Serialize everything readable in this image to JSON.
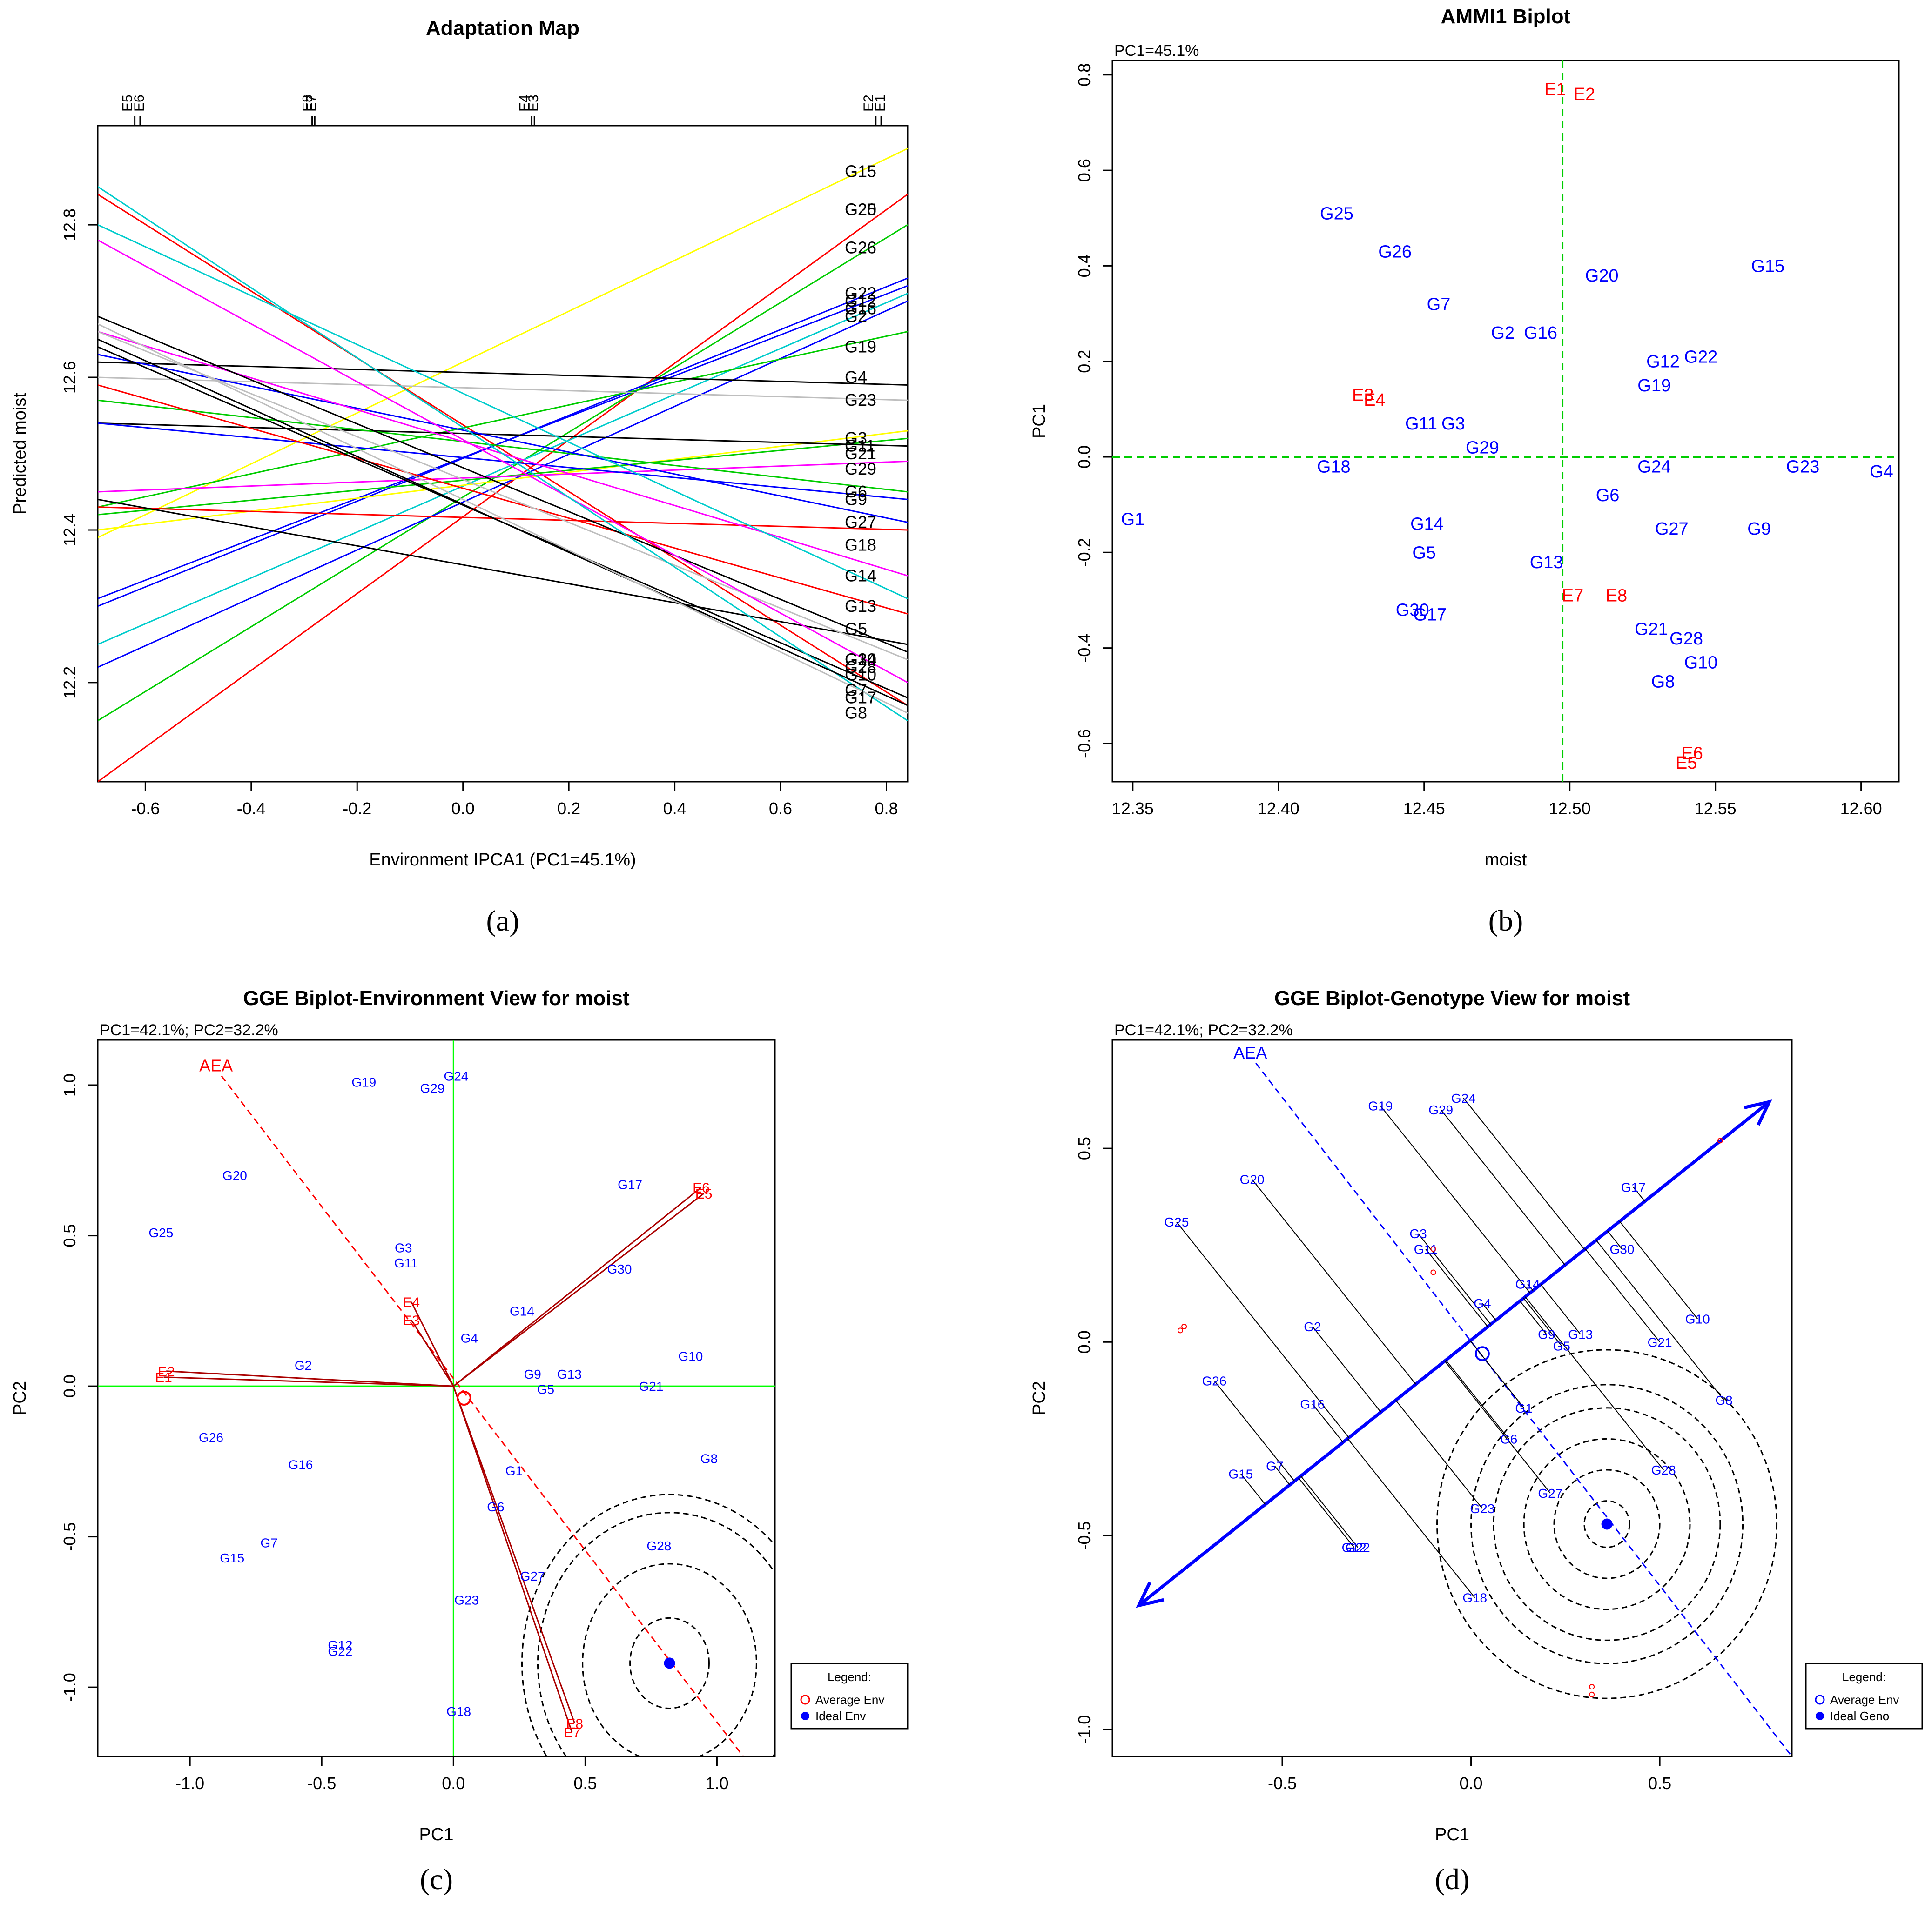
{
  "chart_data": [
    {
      "id": "a",
      "type": "line",
      "title": "Adaptation Map",
      "xlabel": "Environment IPCA1 (PC1=45.1%)",
      "ylabel": "Predicted moist",
      "caption": "(a)",
      "xlim": [
        -0.69,
        0.84
      ],
      "ylim": [
        12.07,
        12.93
      ],
      "xticks": [
        -0.6,
        -0.4,
        -0.2,
        0.0,
        0.2,
        0.4,
        0.6,
        0.8
      ],
      "xtick_labels": [
        "-0.6",
        "-0.4",
        "-0.2",
        "0.0",
        "0.2",
        "0.4",
        "0.6",
        "0.8"
      ],
      "yticks": [
        12.2,
        12.4,
        12.6,
        12.8
      ],
      "ytick_labels": [
        "12.2",
        "12.4",
        "12.6",
        "12.8"
      ],
      "env_markers": [
        {
          "label": "E5",
          "x": -0.62
        },
        {
          "label": "E6",
          "x": -0.61
        },
        {
          "label": "E8",
          "x": -0.28
        },
        {
          "label": "E7",
          "x": -0.285
        },
        {
          "label": "E4",
          "x": 0.13
        },
        {
          "label": "E3",
          "x": 0.135
        },
        {
          "label": "E2",
          "x": 0.78
        },
        {
          "label": "E1",
          "x": 0.79
        }
      ],
      "series": [
        {
          "name": "G15",
          "color": "#ffff00",
          "y_left": 12.39,
          "y_right": 12.9,
          "label_y": 12.87
        },
        {
          "name": "G25",
          "color": "#ff0000",
          "y_left": 12.84,
          "y_right": 12.17,
          "label_y": 12.82
        },
        {
          "name": "G20",
          "color": "#ff0000",
          "y_left": 12.07,
          "y_right": 12.84,
          "label_y": 12.82
        },
        {
          "name": "G26",
          "color": "#00cc00",
          "y_left": 12.15,
          "y_right": 12.8,
          "label_y": 12.77
        },
        {
          "name": "G22",
          "color": "#0000ff",
          "y_left": 12.3,
          "y_right": 12.73,
          "label_y": 12.71
        },
        {
          "name": "G12",
          "color": "#0000ff",
          "y_left": 12.31,
          "y_right": 12.72,
          "label_y": 12.7
        },
        {
          "name": "G16",
          "color": "#00cccc",
          "y_left": 12.25,
          "y_right": 12.71,
          "label_y": 12.69
        },
        {
          "name": "G2",
          "color": "#0000ff",
          "y_left": 12.22,
          "y_right": 12.7,
          "label_y": 12.68
        },
        {
          "name": "G19",
          "color": "#00cc00",
          "y_left": 12.43,
          "y_right": 12.66,
          "label_y": 12.64
        },
        {
          "name": "G4",
          "color": "#000000",
          "y_left": 12.62,
          "y_right": 12.59,
          "label_y": 12.6
        },
        {
          "name": "G23",
          "color": "#bebebe",
          "y_left": 12.6,
          "y_right": 12.57,
          "label_y": 12.57
        },
        {
          "name": "G3",
          "color": "#ffff00",
          "y_left": 12.4,
          "y_right": 12.53,
          "label_y": 12.52
        },
        {
          "name": "G11",
          "color": "#00cc00",
          "y_left": 12.42,
          "y_right": 12.52,
          "label_y": 12.51
        },
        {
          "name": "G21",
          "color": "#000000",
          "y_left": 12.54,
          "y_right": 12.51,
          "label_y": 12.5
        },
        {
          "name": "G29",
          "color": "#ff00ff",
          "y_left": 12.45,
          "y_right": 12.49,
          "label_y": 12.48
        },
        {
          "name": "G6",
          "color": "#00cc00",
          "y_left": 12.57,
          "y_right": 12.45,
          "label_y": 12.45
        },
        {
          "name": "G9",
          "color": "#0000ff",
          "y_left": 12.54,
          "y_right": 12.44,
          "label_y": 12.44
        },
        {
          "name": "G27",
          "color": "#0000ff",
          "y_left": 12.63,
          "y_right": 12.41,
          "label_y": 12.41
        },
        {
          "name": "G18",
          "color": "#ff0000",
          "y_left": 12.43,
          "y_right": 12.4,
          "label_y": 12.38
        },
        {
          "name": "G14",
          "color": "#ff00ff",
          "y_left": 12.66,
          "y_right": 12.34,
          "label_y": 12.34
        },
        {
          "name": "G13",
          "color": "#00cccc",
          "y_left": 12.8,
          "y_right": 12.31,
          "label_y": 12.3
        },
        {
          "name": "G5",
          "color": "#ff0000",
          "y_left": 12.59,
          "y_right": 12.29,
          "label_y": 12.27
        },
        {
          "name": "G1",
          "color": "#000000",
          "y_left": 12.44,
          "y_right": 12.25,
          "label_y": 12.23
        },
        {
          "name": "G30",
          "color": "#000000",
          "y_left": 12.68,
          "y_right": 12.24,
          "label_y": 12.23
        },
        {
          "name": "G24",
          "color": "#bebebe",
          "y_left": 12.66,
          "y_right": 12.23,
          "label_y": 12.23
        },
        {
          "name": "G28",
          "color": "#ff00ff",
          "y_left": 12.78,
          "y_right": 12.2,
          "label_y": 12.22
        },
        {
          "name": "G10",
          "color": "#000000",
          "y_left": 12.64,
          "y_right": 12.18,
          "label_y": 12.21
        },
        {
          "name": "G7",
          "color": "#00cccc",
          "y_left": 12.85,
          "y_right": 12.15,
          "label_y": 12.19
        },
        {
          "name": "G17",
          "color": "#000000",
          "y_left": 12.65,
          "y_right": 12.17,
          "label_y": 12.18
        },
        {
          "name": "G8",
          "color": "#bebebe",
          "y_left": 12.67,
          "y_right": 12.16,
          "label_y": 12.16
        }
      ]
    },
    {
      "id": "b",
      "type": "scatter",
      "title": "AMMI1 Biplot",
      "subtitle": "PC1=45.1%",
      "xlabel": "moist",
      "ylabel": "PC1",
      "caption": "(b)",
      "xlim": [
        12.343,
        12.613
      ],
      "ylim": [
        -0.68,
        0.83
      ],
      "xticks": [
        12.35,
        12.4,
        12.45,
        12.5,
        12.55,
        12.6
      ],
      "xtick_labels": [
        "12.35",
        "12.40",
        "12.45",
        "12.50",
        "12.55",
        "12.60"
      ],
      "yticks": [
        -0.6,
        -0.4,
        -0.2,
        0.0,
        0.2,
        0.4,
        0.6,
        0.8
      ],
      "ytick_labels": [
        "-0.6",
        "-0.4",
        "-0.2",
        "0.0",
        "0.2",
        "0.4",
        "0.6",
        "0.8"
      ],
      "reference_lines": {
        "x": 12.4975,
        "y": 0.0
      },
      "genotypes": [
        {
          "label": "G1",
          "x": 12.35,
          "y": -0.13
        },
        {
          "label": "G2",
          "x": 12.477,
          "y": 0.26
        },
        {
          "label": "G3",
          "x": 12.46,
          "y": 0.07
        },
        {
          "label": "G4",
          "x": 12.607,
          "y": -0.03
        },
        {
          "label": "G5",
          "x": 12.45,
          "y": -0.2
        },
        {
          "label": "G6",
          "x": 12.513,
          "y": -0.08
        },
        {
          "label": "G7",
          "x": 12.455,
          "y": 0.32
        },
        {
          "label": "G8",
          "x": 12.532,
          "y": -0.47
        },
        {
          "label": "G9",
          "x": 12.565,
          "y": -0.15
        },
        {
          "label": "G10",
          "x": 12.545,
          "y": -0.43
        },
        {
          "label": "G11",
          "x": 12.449,
          "y": 0.07
        },
        {
          "label": "G12",
          "x": 12.532,
          "y": 0.2
        },
        {
          "label": "G13",
          "x": 12.492,
          "y": -0.22
        },
        {
          "label": "G14",
          "x": 12.451,
          "y": -0.14
        },
        {
          "label": "G15",
          "x": 12.568,
          "y": 0.4
        },
        {
          "label": "G16",
          "x": 12.49,
          "y": 0.26
        },
        {
          "label": "G17",
          "x": 12.452,
          "y": -0.33
        },
        {
          "label": "G18",
          "x": 12.419,
          "y": -0.02
        },
        {
          "label": "G19",
          "x": 12.529,
          "y": 0.15
        },
        {
          "label": "G20",
          "x": 12.511,
          "y": 0.38
        },
        {
          "label": "G21",
          "x": 12.528,
          "y": -0.36
        },
        {
          "label": "G22",
          "x": 12.545,
          "y": 0.21
        },
        {
          "label": "G23",
          "x": 12.58,
          "y": -0.02
        },
        {
          "label": "G24",
          "x": 12.529,
          "y": -0.02
        },
        {
          "label": "G25",
          "x": 12.42,
          "y": 0.51
        },
        {
          "label": "G26",
          "x": 12.44,
          "y": 0.43
        },
        {
          "label": "G27",
          "x": 12.535,
          "y": -0.15
        },
        {
          "label": "G28",
          "x": 12.54,
          "y": -0.38
        },
        {
          "label": "G29",
          "x": 12.47,
          "y": 0.02
        },
        {
          "label": "G30",
          "x": 12.446,
          "y": -0.32
        }
      ],
      "environments": [
        {
          "label": "E1",
          "x": 12.495,
          "y": 0.77
        },
        {
          "label": "E2",
          "x": 12.505,
          "y": 0.76
        },
        {
          "label": "E3",
          "x": 12.429,
          "y": 0.13
        },
        {
          "label": "E4",
          "x": 12.433,
          "y": 0.12
        },
        {
          "label": "E5",
          "x": 12.54,
          "y": -0.64
        },
        {
          "label": "E6",
          "x": 12.542,
          "y": -0.62
        },
        {
          "label": "E7",
          "x": 12.501,
          "y": -0.29
        },
        {
          "label": "E8",
          "x": 12.516,
          "y": -0.29
        }
      ]
    },
    {
      "id": "c",
      "type": "scatter",
      "title": "GGE Biplot-Environment View for moist",
      "subtitle": "PC1=42.1%; PC2=32.2%",
      "xlabel": "PC1",
      "ylabel": "PC2",
      "caption": "(c)",
      "xlim": [
        -1.35,
        1.22
      ],
      "ylim": [
        -1.23,
        1.15
      ],
      "xticks": [
        -1.0,
        -0.5,
        0.0,
        0.5,
        1.0
      ],
      "xtick_labels": [
        "-1.0",
        "-0.5",
        "0.0",
        "0.5",
        "1.0"
      ],
      "yticks": [
        -1.0,
        -0.5,
        0.0,
        0.5,
        1.0
      ],
      "ytick_labels": [
        "-1.0",
        "-0.5",
        "0.0",
        "0.5",
        "1.0"
      ],
      "aea_label": "AEA",
      "aea_line": [
        [
          -0.88,
          1.03
        ],
        [
          1.1,
          -1.23
        ]
      ],
      "average_env": [
        0.04,
        -0.04
      ],
      "ideal_point": [
        0.82,
        -0.92
      ],
      "circle_radii": [
        0.15,
        0.33,
        0.5,
        0.56
      ],
      "legend": {
        "title": "Legend:",
        "items": [
          "Average Env",
          "Ideal Env"
        ]
      },
      "genotypes": [
        {
          "label": "G19",
          "x": -0.34,
          "y": 1.01
        },
        {
          "label": "G24",
          "x": 0.01,
          "y": 1.03
        },
        {
          "label": "G29",
          "x": -0.08,
          "y": 0.99
        },
        {
          "label": "G20",
          "x": -0.83,
          "y": 0.7
        },
        {
          "label": "G17",
          "x": 0.67,
          "y": 0.67
        },
        {
          "label": "G25",
          "x": -1.11,
          "y": 0.51
        },
        {
          "label": "G3",
          "x": -0.19,
          "y": 0.46
        },
        {
          "label": "G11",
          "x": -0.18,
          "y": 0.41
        },
        {
          "label": "G30",
          "x": 0.63,
          "y": 0.39
        },
        {
          "label": "G14",
          "x": 0.26,
          "y": 0.25
        },
        {
          "label": "G4",
          "x": 0.06,
          "y": 0.16
        },
        {
          "label": "G2",
          "x": -0.57,
          "y": 0.07
        },
        {
          "label": "G10",
          "x": 0.9,
          "y": 0.1
        },
        {
          "label": "G9",
          "x": 0.3,
          "y": 0.04
        },
        {
          "label": "G13",
          "x": 0.44,
          "y": 0.04
        },
        {
          "label": "G5",
          "x": 0.35,
          "y": -0.01
        },
        {
          "label": "G21",
          "x": 0.75,
          "y": 0.0
        },
        {
          "label": "G26",
          "x": -0.92,
          "y": -0.17
        },
        {
          "label": "G16",
          "x": -0.58,
          "y": -0.26
        },
        {
          "label": "G1",
          "x": 0.23,
          "y": -0.28
        },
        {
          "label": "G8",
          "x": 0.97,
          "y": -0.24
        },
        {
          "label": "G6",
          "x": 0.16,
          "y": -0.4
        },
        {
          "label": "G7",
          "x": -0.7,
          "y": -0.52
        },
        {
          "label": "G15",
          "x": -0.84,
          "y": -0.57
        },
        {
          "label": "G28",
          "x": 0.78,
          "y": -0.53
        },
        {
          "label": "G27",
          "x": 0.3,
          "y": -0.63
        },
        {
          "label": "G23",
          "x": 0.05,
          "y": -0.71
        },
        {
          "label": "G12",
          "x": -0.43,
          "y": -0.86
        },
        {
          "label": "G22",
          "x": -0.43,
          "y": -0.88
        },
        {
          "label": "G18",
          "x": 0.02,
          "y": -1.08
        }
      ],
      "environments": [
        {
          "label": "E6",
          "x": 0.94,
          "y": 0.66
        },
        {
          "label": "E5",
          "x": 0.95,
          "y": 0.64
        },
        {
          "label": "E4",
          "x": -0.16,
          "y": 0.28
        },
        {
          "label": "E3",
          "x": -0.16,
          "y": 0.22
        },
        {
          "label": "E2",
          "x": -1.09,
          "y": 0.05
        },
        {
          "label": "E1",
          "x": -1.1,
          "y": 0.03
        },
        {
          "label": "E8",
          "x": 0.46,
          "y": -1.12
        },
        {
          "label": "E7",
          "x": 0.45,
          "y": -1.15
        }
      ]
    },
    {
      "id": "d",
      "type": "scatter",
      "title": "GGE Biplot-Genotype View for moist",
      "subtitle": "PC1=42.1%; PC2=32.2%",
      "xlabel": "PC1",
      "ylabel": "PC2",
      "caption": "(d)",
      "xlim": [
        -0.95,
        0.85
      ],
      "ylim": [
        -1.07,
        0.78
      ],
      "xticks": [
        -0.5,
        0.0,
        0.5
      ],
      "xtick_labels": [
        "-0.5",
        "0.0",
        "0.5"
      ],
      "yticks": [
        -1.0,
        -0.5,
        0.0,
        0.5
      ],
      "ytick_labels": [
        "-1.0",
        "-0.5",
        "0.0",
        "0.5"
      ],
      "aea_label": "AEA",
      "aea_line": [
        [
          -0.57,
          0.72
        ],
        [
          0.85,
          -1.07
        ]
      ],
      "average_env": [
        0.03,
        -0.03
      ],
      "ideal_point": [
        0.36,
        -0.47
      ],
      "arrow": [
        [
          -0.88,
          -0.68
        ],
        [
          0.79,
          0.62
        ]
      ],
      "circle_radii": [
        0.06,
        0.14,
        0.22,
        0.3,
        0.36,
        0.45
      ],
      "legend": {
        "title": "Legend:",
        "items": [
          "Average Env",
          "Ideal Geno"
        ]
      },
      "genotypes": [
        {
          "label": "G19",
          "x": -0.24,
          "y": 0.61
        },
        {
          "label": "G29",
          "x": -0.08,
          "y": 0.6
        },
        {
          "label": "G24",
          "x": -0.02,
          "y": 0.63
        },
        {
          "label": "G20",
          "x": -0.58,
          "y": 0.42
        },
        {
          "label": "G17",
          "x": 0.43,
          "y": 0.4
        },
        {
          "label": "G25",
          "x": -0.78,
          "y": 0.31
        },
        {
          "label": "G3",
          "x": -0.14,
          "y": 0.28
        },
        {
          "label": "G11",
          "x": -0.12,
          "y": 0.24
        },
        {
          "label": "G30",
          "x": 0.4,
          "y": 0.24
        },
        {
          "label": "G14",
          "x": 0.15,
          "y": 0.15
        },
        {
          "label": "G4",
          "x": 0.03,
          "y": 0.1
        },
        {
          "label": "G2",
          "x": -0.42,
          "y": 0.04
        },
        {
          "label": "G10",
          "x": 0.6,
          "y": 0.06
        },
        {
          "label": "G9",
          "x": 0.2,
          "y": 0.02
        },
        {
          "label": "G13",
          "x": 0.29,
          "y": 0.02
        },
        {
          "label": "G5",
          "x": 0.24,
          "y": -0.01
        },
        {
          "label": "G21",
          "x": 0.5,
          "y": 0.0
        },
        {
          "label": "G26",
          "x": -0.68,
          "y": -0.1
        },
        {
          "label": "G16",
          "x": -0.42,
          "y": -0.16
        },
        {
          "label": "G1",
          "x": 0.14,
          "y": -0.17
        },
        {
          "label": "G8",
          "x": 0.67,
          "y": -0.15
        },
        {
          "label": "G6",
          "x": 0.1,
          "y": -0.25
        },
        {
          "label": "G7",
          "x": -0.52,
          "y": -0.32
        },
        {
          "label": "G15",
          "x": -0.61,
          "y": -0.34
        },
        {
          "label": "G28",
          "x": 0.51,
          "y": -0.33
        },
        {
          "label": "G27",
          "x": 0.21,
          "y": -0.39
        },
        {
          "label": "G23",
          "x": 0.03,
          "y": -0.43
        },
        {
          "label": "G12",
          "x": -0.31,
          "y": -0.53
        },
        {
          "label": "G22",
          "x": -0.3,
          "y": -0.53
        },
        {
          "label": "G18",
          "x": 0.01,
          "y": -0.66
        }
      ],
      "environments": [
        {
          "label": "",
          "x": 0.66,
          "y": 0.52
        },
        {
          "label": "",
          "x": -0.1,
          "y": 0.24
        },
        {
          "label": "",
          "x": -0.1,
          "y": 0.18
        },
        {
          "label": "",
          "x": -0.76,
          "y": 0.04
        },
        {
          "label": "",
          "x": -0.77,
          "y": 0.03
        },
        {
          "label": "",
          "x": 0.32,
          "y": -0.89
        },
        {
          "label": "",
          "x": 0.32,
          "y": -0.91
        }
      ]
    }
  ]
}
